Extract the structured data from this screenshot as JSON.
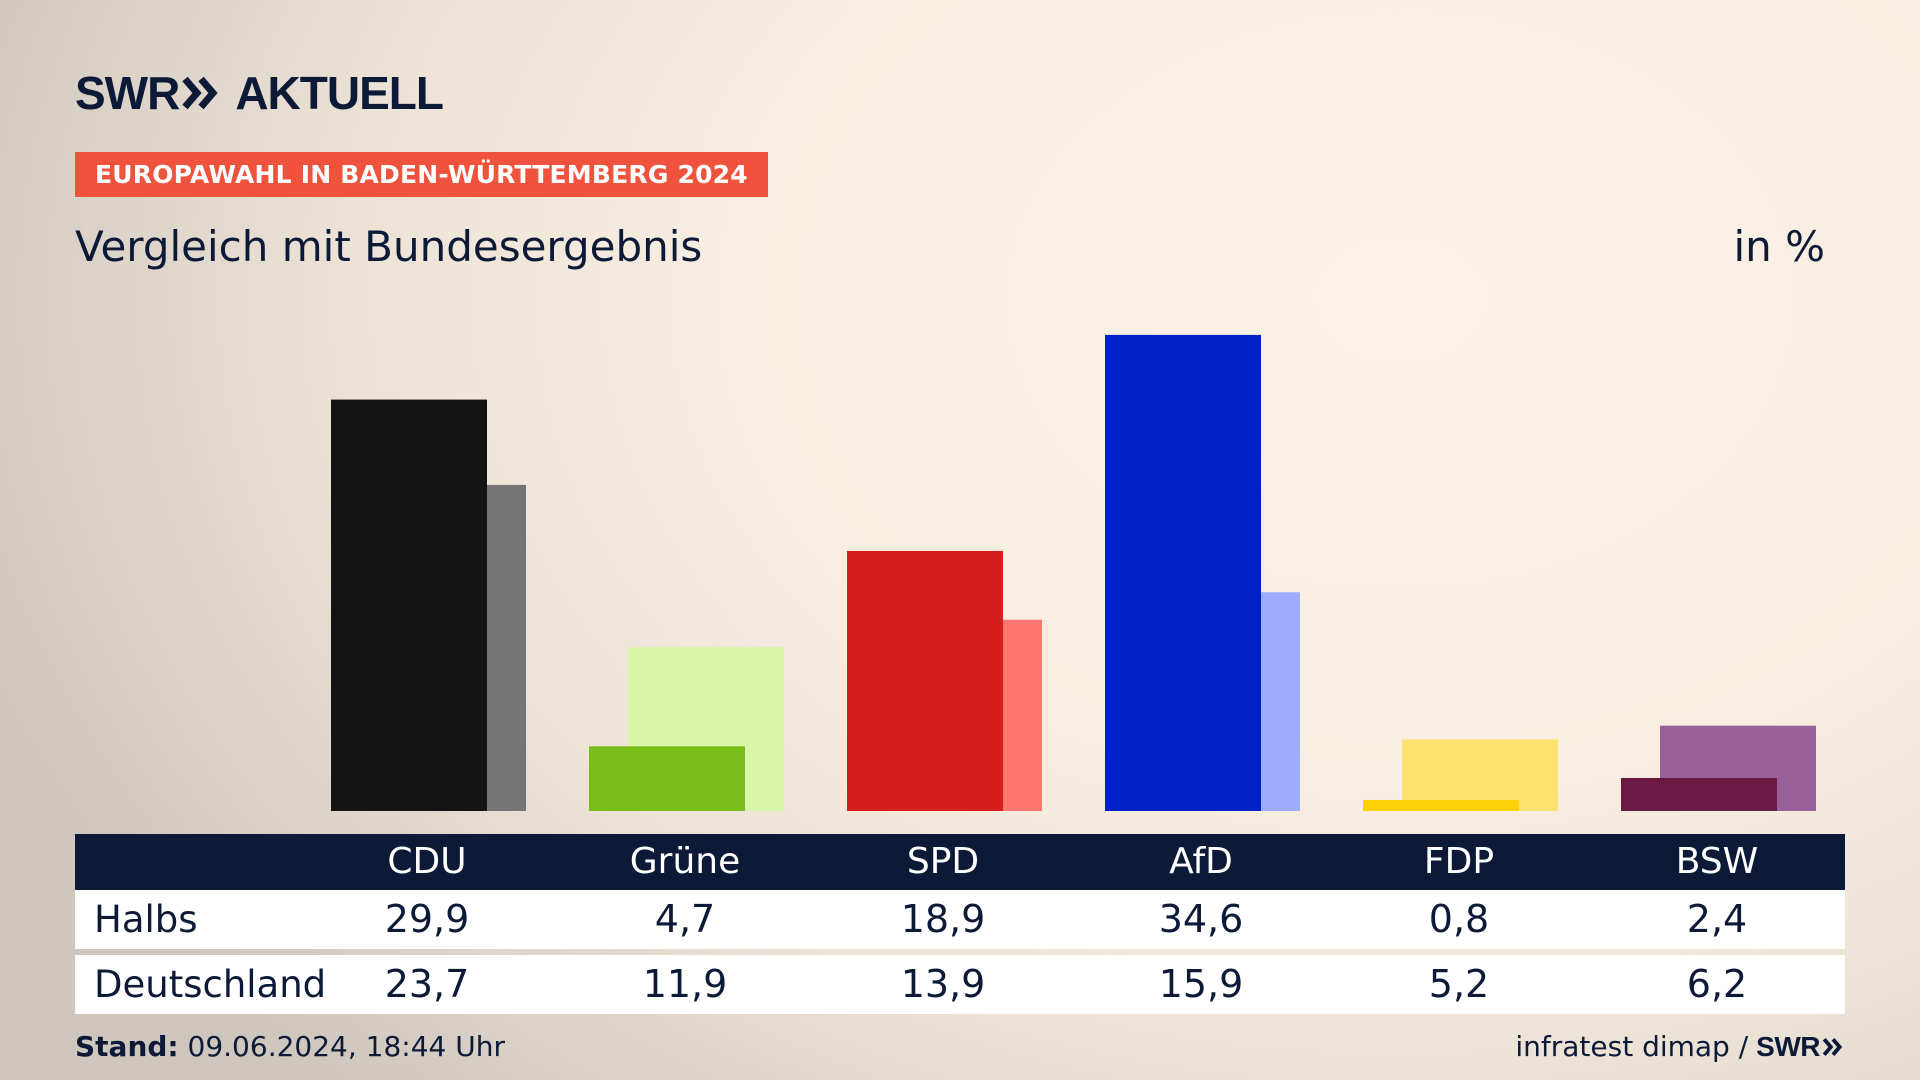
{
  "brand": {
    "name": "SWR",
    "product": "AKTUELL"
  },
  "badge": "EUROPAWAHL IN BADEN-WÜRTTEMBERG 2024",
  "subtitle": "Vergleich mit Bundesergebnis",
  "unit": "in %",
  "chart_data": {
    "type": "bar",
    "title": "",
    "categories": [
      "CDU",
      "Grüne",
      "SPD",
      "AfD",
      "FDP",
      "BSW"
    ],
    "series": [
      {
        "name": "Halbs",
        "values": [
          29.9,
          4.7,
          18.9,
          34.6,
          0.8,
          2.4
        ]
      },
      {
        "name": "Deutschland",
        "values": [
          23.7,
          11.9,
          13.9,
          15.9,
          5.2,
          6.2
        ]
      }
    ],
    "colors": {
      "primary": [
        "#141414",
        "#79bd1b",
        "#d51e1e",
        "#0020c8",
        "#fdd20d",
        "#6a1a42"
      ],
      "secondary": [
        "#757575",
        "#d8f5aa",
        "#ff7570",
        "#9eacff",
        "#fce26e",
        "#9a5e98"
      ]
    },
    "ylim": [
      0,
      35
    ],
    "grid": false,
    "legend": "table-below"
  },
  "table": {
    "header": [
      "CDU",
      "Grüne",
      "SPD",
      "AfD",
      "FDP",
      "BSW"
    ],
    "rows": [
      {
        "label": "Halbs",
        "values": [
          "29,9",
          "4,7",
          "18,9",
          "34,6",
          "0,8",
          "2,4"
        ]
      },
      {
        "label": "Deutschland",
        "values": [
          "23,7",
          "11,9",
          "13,9",
          "15,9",
          "5,2",
          "6,2"
        ]
      }
    ]
  },
  "footer": {
    "stand_label": "Stand:",
    "stand_value": "09.06.2024, 18:44 Uhr",
    "source": "infratest dimap /",
    "source_brand": "SWR"
  }
}
